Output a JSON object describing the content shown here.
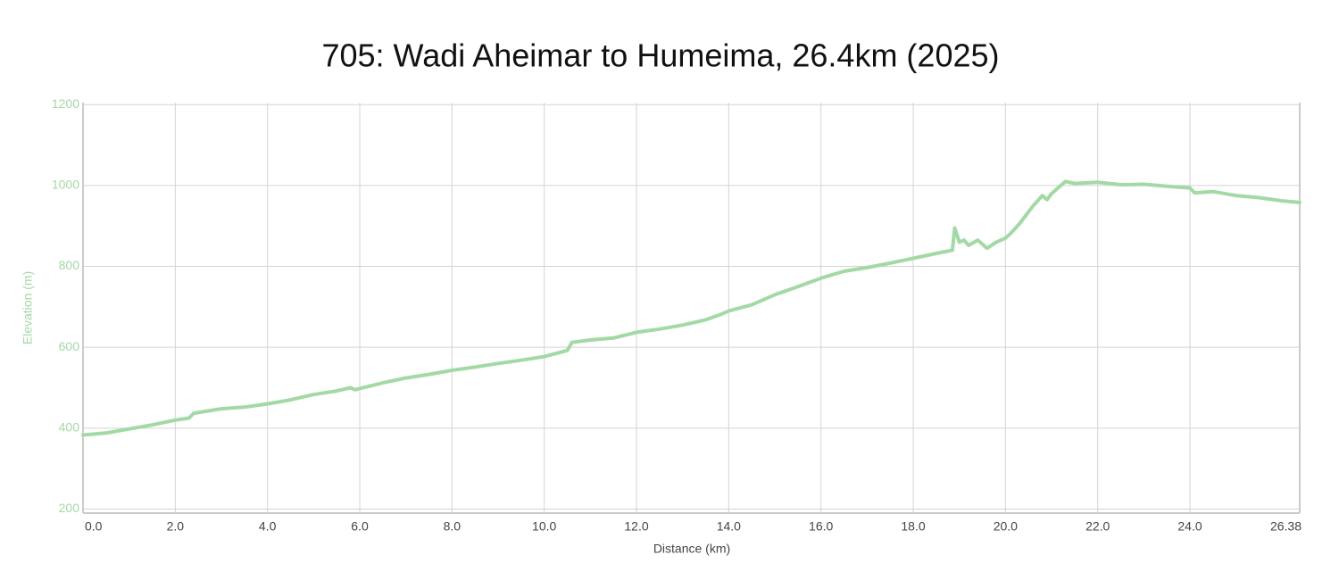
{
  "chart_data": {
    "type": "line",
    "title": "705: Wadi Aheimar to Humeima, 26.4km (2025)",
    "x_label": "Distance (km)",
    "y_label": "Elevation (m)",
    "color": "#a3d9a5",
    "grid": true,
    "x": [
      0,
      0.5,
      1.0,
      1.5,
      2.0,
      2.3,
      2.4,
      3.0,
      3.5,
      4.0,
      4.5,
      5.0,
      5.5,
      5.8,
      5.9,
      6.0,
      6.5,
      7.0,
      7.5,
      8.0,
      8.5,
      9.0,
      9.5,
      10.0,
      10.5,
      10.6,
      11.0,
      11.5,
      12.0,
      12.5,
      13.0,
      13.5,
      13.8,
      14.0,
      14.5,
      15.0,
      15.5,
      16.0,
      16.5,
      17.0,
      17.5,
      18.0,
      18.5,
      18.85,
      18.9,
      19.0,
      19.1,
      19.2,
      19.4,
      19.6,
      19.8,
      20.0,
      20.1,
      20.3,
      20.6,
      20.8,
      20.9,
      21.0,
      21.3,
      21.5,
      22.0,
      22.5,
      23.0,
      23.5,
      24.0,
      24.1,
      24.5,
      25.0,
      25.5,
      26.0,
      26.38
    ],
    "values": [
      383,
      388,
      398,
      408,
      420,
      425,
      437,
      448,
      452,
      460,
      470,
      483,
      492,
      500,
      495,
      498,
      512,
      524,
      533,
      543,
      551,
      560,
      568,
      577,
      592,
      612,
      618,
      623,
      637,
      645,
      655,
      668,
      680,
      690,
      705,
      730,
      750,
      771,
      788,
      797,
      808,
      820,
      832,
      840,
      895,
      860,
      865,
      852,
      865,
      845,
      860,
      870,
      880,
      905,
      950,
      975,
      965,
      980,
      1010,
      1005,
      1008,
      1002,
      1003,
      998,
      994,
      982,
      985,
      975,
      970,
      962,
      958
    ],
    "xlim": [
      0,
      26.38
    ],
    "ylim": [
      190,
      1205
    ],
    "xticks": [
      {
        "value": 0,
        "label": "0.0"
      },
      {
        "value": 2,
        "label": "2.0"
      },
      {
        "value": 4,
        "label": "4.0"
      },
      {
        "value": 6,
        "label": "6.0"
      },
      {
        "value": 8,
        "label": "8.0"
      },
      {
        "value": 10,
        "label": "10.0"
      },
      {
        "value": 12,
        "label": "12.0"
      },
      {
        "value": 14,
        "label": "14.0"
      },
      {
        "value": 16,
        "label": "16.0"
      },
      {
        "value": 18,
        "label": "18.0"
      },
      {
        "value": 20,
        "label": "20.0"
      },
      {
        "value": 22,
        "label": "22.0"
      },
      {
        "value": 24,
        "label": "24.0"
      },
      26.38
    ],
    "yticks": [
      200,
      400,
      600,
      800,
      1000,
      1200
    ]
  }
}
